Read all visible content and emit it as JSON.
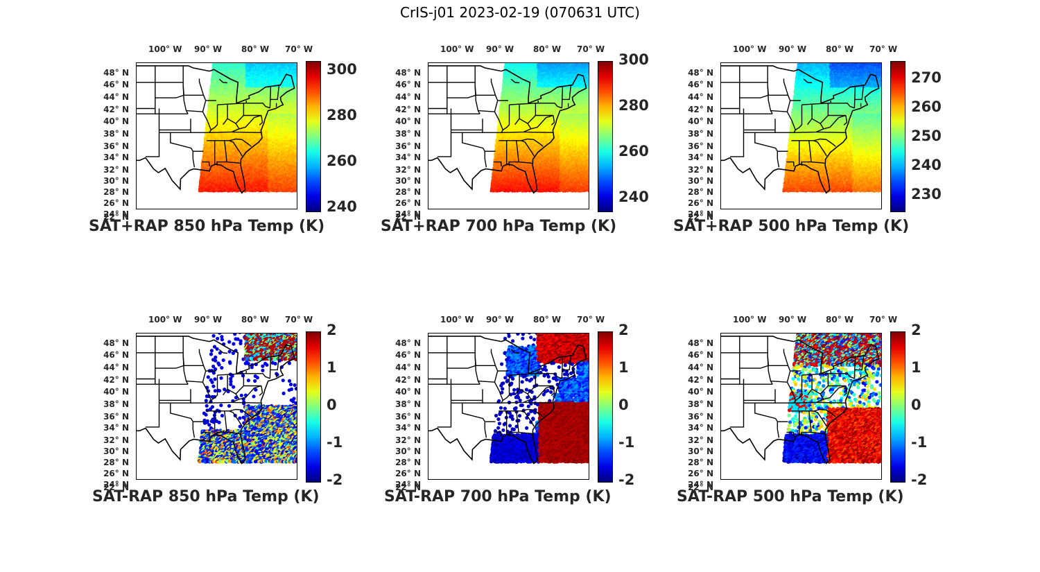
{
  "figure": {
    "title": "CrIS-j01 2023-02-19 (070631 UTC)"
  },
  "lon_labels": [
    "100° W",
    "90° W",
    "80° W",
    "70° W"
  ],
  "lat_labels": [
    "48° N",
    "46° N",
    "44° N",
    "42° N",
    "40° N",
    "38° N",
    "36° N",
    "34° N",
    "32° N",
    "30° N",
    "28° N",
    "26° N",
    "24° N",
    "22° N"
  ],
  "colormap": "jet",
  "panels": [
    {
      "title": "SAT+RAP 850 hPa Temp (K)",
      "kind": "sum",
      "level": 850,
      "colorbar_ticks": [
        "300",
        "280",
        "260",
        "240"
      ]
    },
    {
      "title": "SAT+RAP 700 hPa Temp (K)",
      "kind": "sum",
      "level": 700,
      "colorbar_ticks": [
        "300",
        "280",
        "260",
        "240"
      ]
    },
    {
      "title": "SAT+RAP 500 hPa Temp (K)",
      "kind": "sum",
      "level": 500,
      "colorbar_ticks": [
        "270",
        "260",
        "250",
        "240",
        "230"
      ]
    },
    {
      "title": "SAT-RAP 850 hPa Temp (K)",
      "kind": "diff",
      "level": 850,
      "colorbar_ticks": [
        "2",
        "1",
        "0",
        "-1",
        "-2"
      ]
    },
    {
      "title": "SAT-RAP 700 hPa Temp (K)",
      "kind": "diff",
      "level": 700,
      "colorbar_ticks": [
        "2",
        "1",
        "0",
        "-1",
        "-2"
      ]
    },
    {
      "title": "SAT-RAP 500 hPa Temp (K)",
      "kind": "diff",
      "level": 500,
      "colorbar_ticks": [
        "2",
        "1",
        "0",
        "-1",
        "-2"
      ]
    }
  ]
}
